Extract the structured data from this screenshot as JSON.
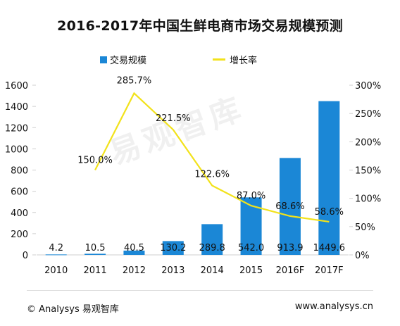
{
  "title": "2016-2017年中国生鲜电商市场交易规模预测",
  "watermark": "易观智库",
  "footer": {
    "left": "© Analysys 易观智库",
    "right": "www.analysys.cn"
  },
  "colors": {
    "bar": "#1b87d6",
    "line": "#f2e21b",
    "axis": "#cfcfcf"
  },
  "chart_data": {
    "type": "bar",
    "title": "2016-2017年中国生鲜电商市场交易规模预测",
    "categories": [
      "2010",
      "2011",
      "2012",
      "2013",
      "2014",
      "2015",
      "2016F",
      "2017F"
    ],
    "series": [
      {
        "name": "交易规模",
        "type": "bar",
        "axis": "left",
        "values": [
          4.2,
          10.5,
          40.5,
          130.2,
          289.8,
          542.0,
          913.9,
          1449.6
        ],
        "labels": [
          "4.2",
          "10.5",
          "40.5",
          "130.2",
          "289.8",
          "542.0",
          "913.9",
          "1449.6"
        ]
      },
      {
        "name": "增长率",
        "type": "line",
        "axis": "right",
        "values": [
          null,
          150.0,
          285.7,
          221.5,
          122.6,
          87.0,
          68.6,
          58.6
        ],
        "labels": [
          "",
          "150.0%",
          "285.7%",
          "221.5%",
          "122.6%",
          "87.0%",
          "68.6%",
          "58.6%"
        ]
      }
    ],
    "ylim": [
      0,
      1600
    ],
    "yticks": [
      "0",
      "200",
      "400",
      "600",
      "800",
      "1000",
      "1200",
      "1400",
      "1600"
    ],
    "y2lim": [
      0,
      300
    ],
    "y2ticks": [
      "0%",
      "50%",
      "100%",
      "150%",
      "200%",
      "250%",
      "300%"
    ],
    "legend_position": "top",
    "grid": false
  }
}
